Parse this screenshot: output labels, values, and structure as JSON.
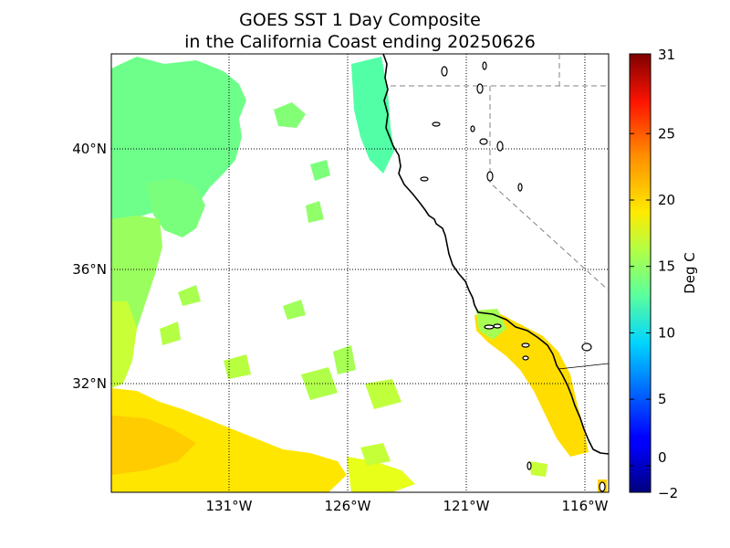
{
  "title_line1": "GOES SST 1 Day Composite",
  "title_line2": "in the California Coast ending 20250626",
  "latitude_labels": [
    "40°N",
    "36°N",
    "32°N"
  ],
  "longitude_labels": [
    "131°W",
    "126°W",
    "121°W",
    "116°W"
  ],
  "colorbar": {
    "label": "Deg C",
    "min": -2,
    "max": 31,
    "ticks": [
      "31",
      "25",
      "20",
      "15",
      "10",
      "5",
      "0",
      "−2"
    ],
    "tick_values": [
      31,
      25,
      20,
      15,
      10,
      5,
      0,
      -2
    ]
  },
  "colors": {
    "coastline": "#000000",
    "land": "#ffffff",
    "no_data": "#ffffff"
  }
}
